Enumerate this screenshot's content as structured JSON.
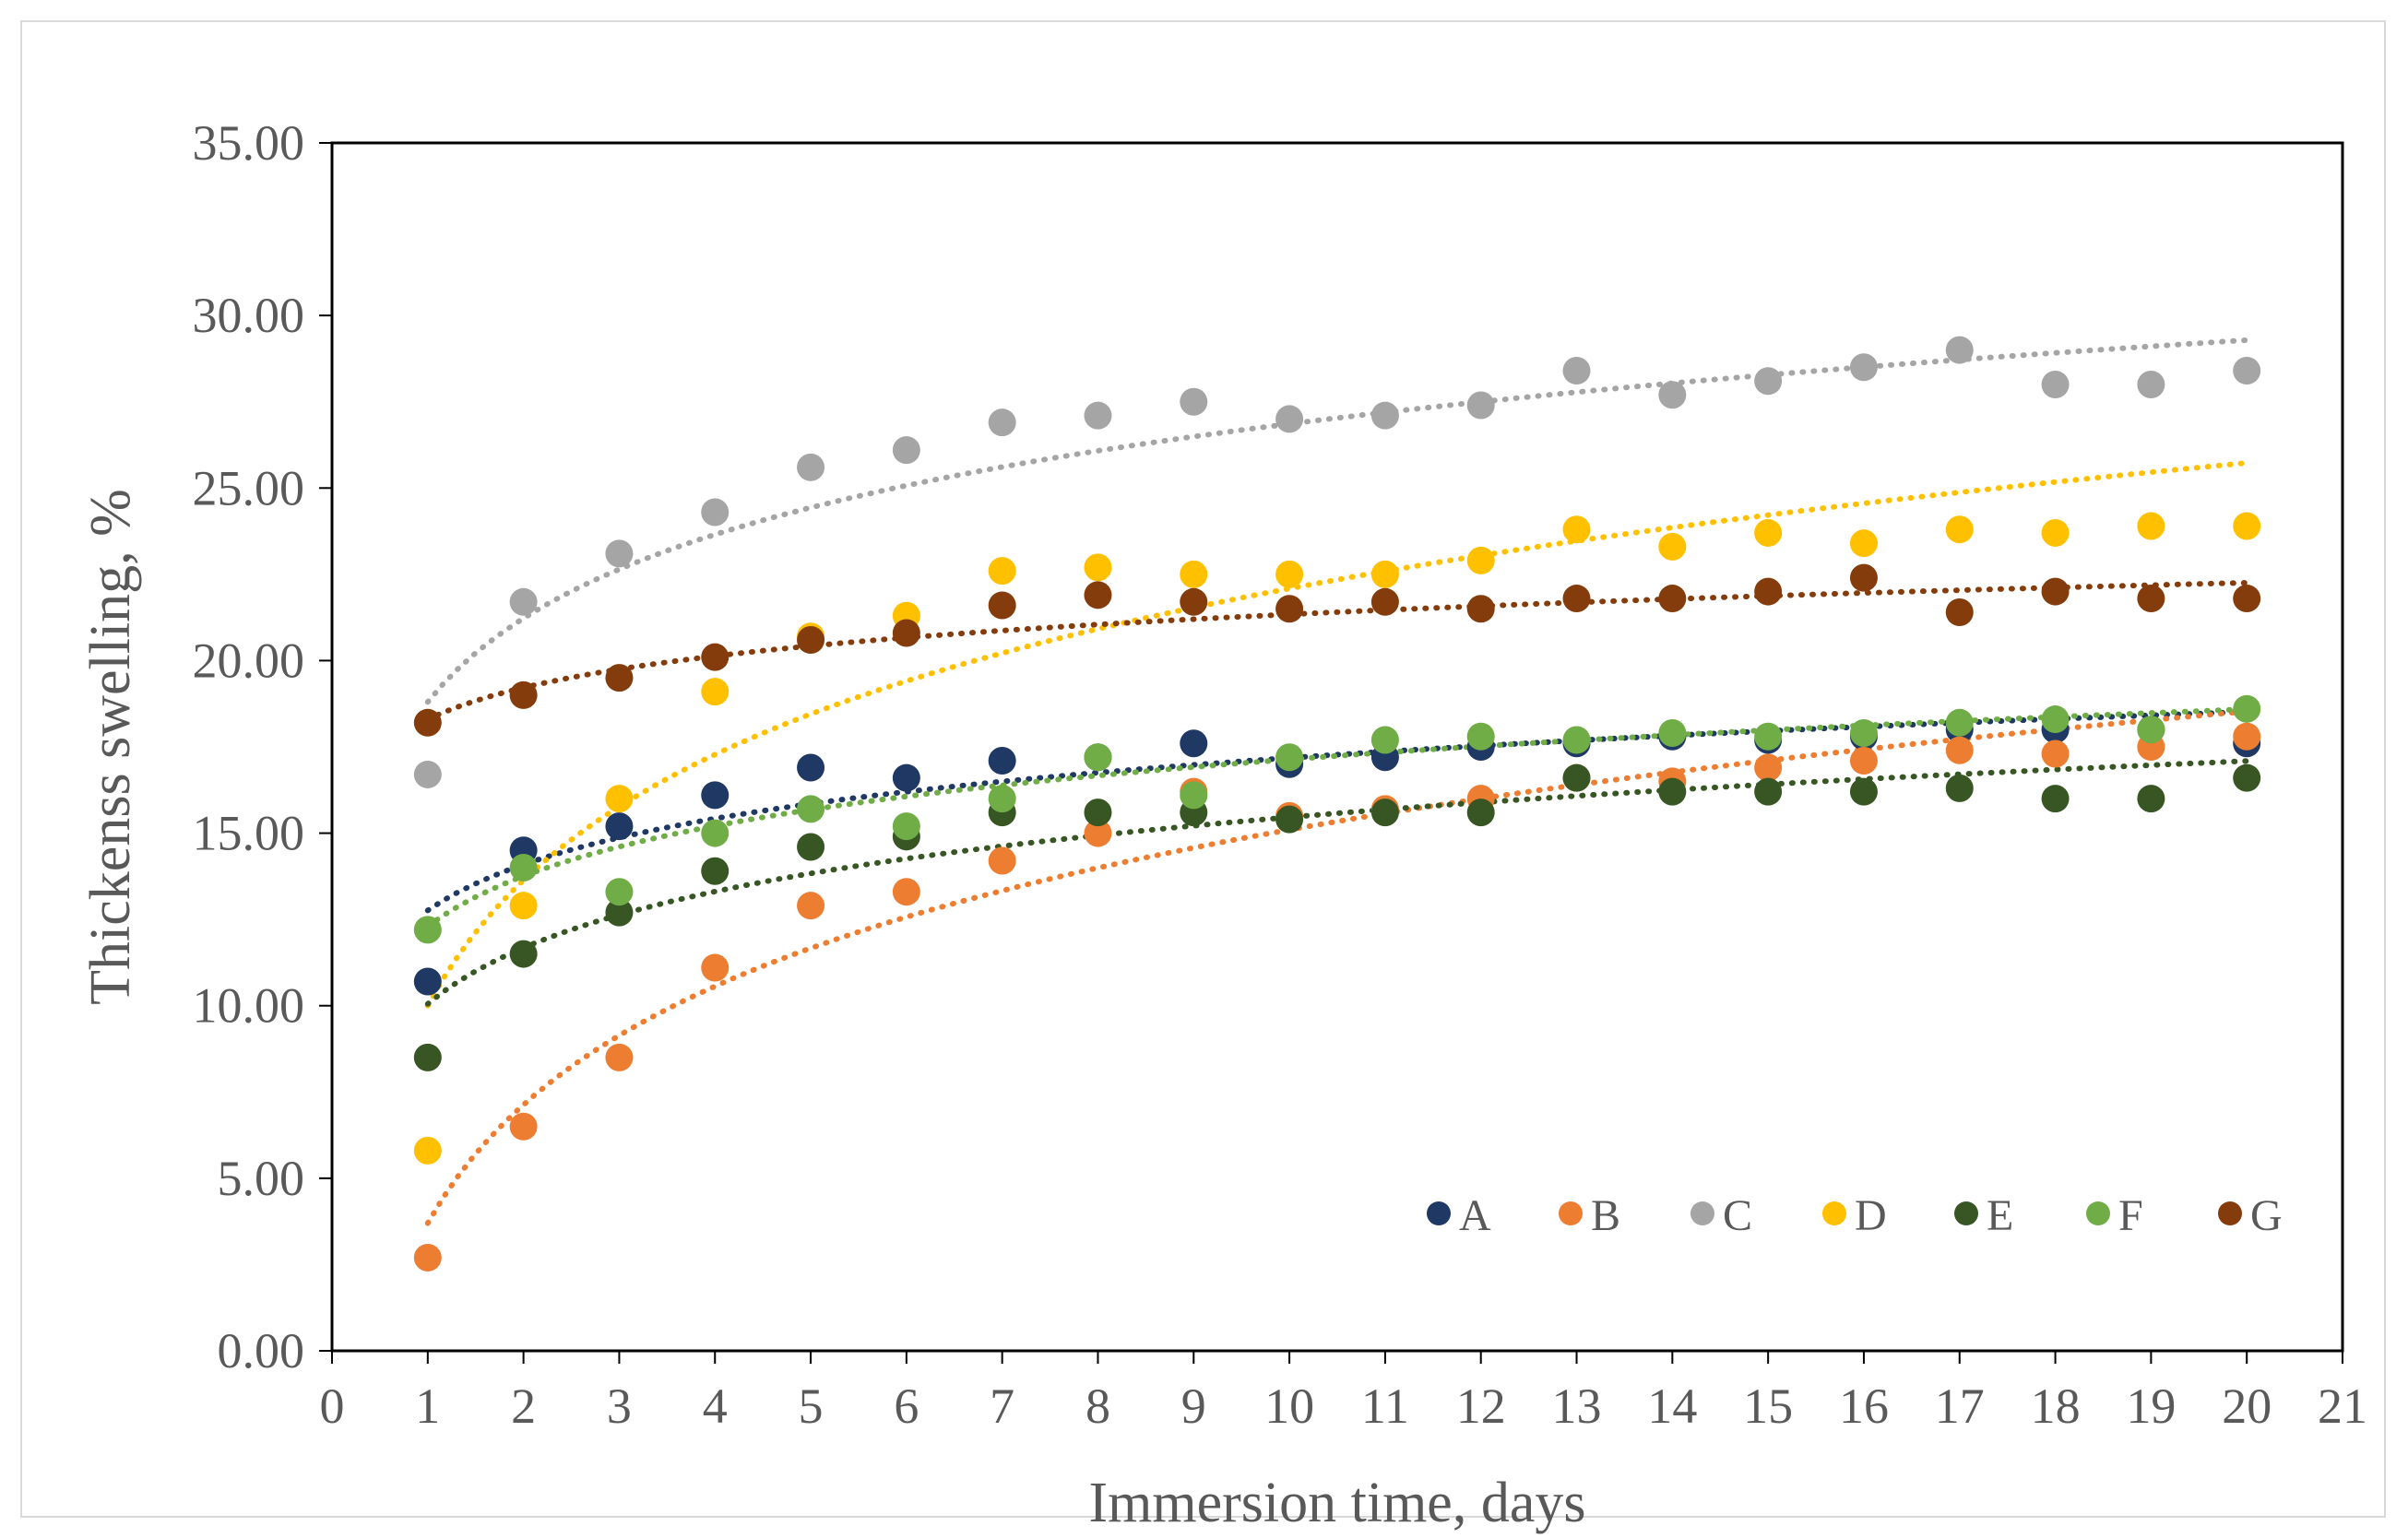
{
  "chart_data": {
    "type": "scatter",
    "title": "",
    "xlabel": "Immersion time, days",
    "ylabel": "Thickenss swelling, %",
    "xlim": [
      0,
      21
    ],
    "ylim": [
      0,
      35
    ],
    "x_ticks": [
      "0",
      "1",
      "2",
      "3",
      "4",
      "5",
      "6",
      "7",
      "8",
      "9",
      "10",
      "11",
      "12",
      "13",
      "14",
      "15",
      "16",
      "17",
      "18",
      "19",
      "20",
      "21"
    ],
    "y_ticks": [
      "0.00",
      "5.00",
      "10.00",
      "15.00",
      "20.00",
      "25.00",
      "30.00",
      "35.00"
    ],
    "grid": false,
    "legend_position": "bottom-right",
    "x": [
      1,
      2,
      3,
      4,
      5,
      6,
      7,
      8,
      9,
      10,
      11,
      12,
      13,
      14,
      15,
      16,
      17,
      18,
      19,
      20
    ],
    "series": [
      {
        "name": "A",
        "color": "#1f3864",
        "trendline": "logarithmic",
        "values": [
          10.7,
          14.5,
          15.2,
          16.1,
          16.9,
          16.6,
          17.1,
          17.2,
          17.6,
          17.0,
          17.2,
          17.5,
          17.6,
          17.8,
          17.7,
          17.8,
          18.0,
          18.0,
          18.0,
          17.6
        ],
        "trend_coef": [
          12.76,
          1.92
        ]
      },
      {
        "name": "B",
        "color": "#ed7d31",
        "trendline": "logarithmic",
        "values": [
          2.7,
          6.5,
          8.5,
          11.1,
          12.9,
          13.3,
          14.2,
          15.0,
          16.2,
          15.5,
          15.7,
          16.0,
          16.6,
          16.5,
          16.9,
          17.1,
          17.4,
          17.3,
          17.5,
          17.8
        ],
        "trend_coef": [
          3.7,
          4.95
        ]
      },
      {
        "name": "C",
        "color": "#a5a5a5",
        "trendline": "logarithmic",
        "values": [
          16.7,
          21.7,
          23.1,
          24.3,
          25.6,
          26.1,
          26.9,
          27.1,
          27.5,
          27.0,
          27.1,
          27.4,
          28.4,
          27.7,
          28.1,
          28.5,
          29.0,
          28.0,
          28.0,
          28.4
        ],
        "trend_coef": [
          18.8,
          3.5
        ]
      },
      {
        "name": "D",
        "color": "#ffc000",
        "trendline": "logarithmic",
        "values": [
          5.8,
          12.9,
          16.0,
          19.1,
          20.7,
          21.3,
          22.6,
          22.7,
          22.5,
          22.5,
          22.5,
          22.9,
          23.8,
          23.3,
          23.7,
          23.4,
          23.8,
          23.7,
          23.9,
          23.9
        ],
        "trend_coef": [
          10.0,
          5.25
        ]
      },
      {
        "name": "E",
        "color": "#375623",
        "trendline": "logarithmic",
        "values": [
          8.5,
          11.5,
          12.7,
          13.9,
          14.6,
          14.9,
          15.6,
          15.6,
          15.6,
          15.4,
          15.6,
          15.6,
          16.6,
          16.2,
          16.2,
          16.2,
          16.3,
          16.0,
          16.0,
          16.6
        ],
        "trend_coef": [
          10.05,
          2.35
        ]
      },
      {
        "name": "F",
        "color": "#70ad47",
        "trendline": "logarithmic",
        "values": [
          12.2,
          14.0,
          13.3,
          15.0,
          15.7,
          15.2,
          16.0,
          17.2,
          16.1,
          17.2,
          17.7,
          17.8,
          17.7,
          17.9,
          17.8,
          17.9,
          18.2,
          18.3,
          18.0,
          18.6
        ],
        "trend_coef": [
          12.3,
          2.1
        ]
      },
      {
        "name": "G",
        "color": "#843c0c",
        "trendline": "logarithmic",
        "values": [
          18.2,
          19.0,
          19.5,
          20.1,
          20.6,
          20.8,
          21.6,
          21.9,
          21.7,
          21.5,
          21.7,
          21.5,
          21.8,
          21.8,
          22.0,
          22.4,
          21.4,
          22.0,
          21.8,
          21.8
        ],
        "trend_coef": [
          18.3,
          1.32
        ]
      }
    ]
  }
}
